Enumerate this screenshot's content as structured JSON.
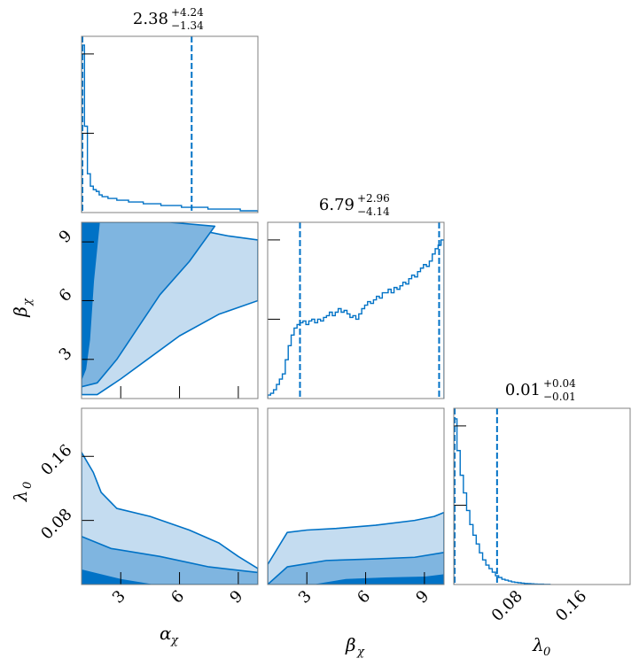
{
  "chart_data": {
    "type": "corner",
    "colors": {
      "line": "#0072c6",
      "fill_inner": "#0072c6",
      "fill_mid": "#7fb5e0",
      "fill_outer": "#c4dcf0",
      "frame": "#808080"
    },
    "parameters": [
      {
        "symbol": "α",
        "subscript": "χ",
        "range": [
          1,
          10
        ],
        "ticks": [
          3,
          6,
          9
        ],
        "tick_labels": [
          "3",
          "6",
          "9"
        ],
        "title": {
          "median": "2.38",
          "plus": "+4.24",
          "minus": "−1.34"
        },
        "quantiles": [
          1.04,
          6.62
        ],
        "histogram": {
          "bin_width": 0.15,
          "heights": [
            0.95,
            0.49,
            0.22,
            0.15,
            0.13,
            0.12,
            0.1,
            0.09,
            0.09,
            0.08,
            0.08,
            0.08,
            0.07,
            0.07,
            0.07,
            0.07,
            0.06,
            0.06,
            0.06,
            0.06,
            0.06,
            0.05,
            0.05,
            0.05,
            0.05,
            0.05,
            0.05,
            0.04,
            0.04,
            0.04,
            0.04,
            0.04,
            0.04,
            0.04,
            0.03,
            0.03,
            0.03,
            0.03,
            0.03,
            0.03,
            0.03,
            0.03,
            0.03,
            0.02,
            0.02,
            0.02,
            0.02,
            0.02,
            0.02,
            0.02,
            0.02,
            0.02,
            0.02,
            0.02,
            0.01,
            0.01,
            0.01,
            0.01,
            0.01,
            0.01
          ]
        }
      },
      {
        "symbol": "β",
        "subscript": "χ",
        "range": [
          1,
          10
        ],
        "ticks": [
          3,
          6,
          9
        ],
        "tick_labels": [
          "3",
          "6",
          "9"
        ],
        "title": {
          "median": "6.79",
          "plus": "+2.96",
          "minus": "−4.14"
        },
        "quantiles": [
          2.65,
          9.75
        ],
        "histogram": {
          "bin_width": 0.15,
          "heights": [
            0.02,
            0.03,
            0.05,
            0.08,
            0.11,
            0.14,
            0.22,
            0.3,
            0.36,
            0.4,
            0.42,
            0.43,
            0.44,
            0.42,
            0.44,
            0.45,
            0.43,
            0.45,
            0.44,
            0.46,
            0.47,
            0.49,
            0.47,
            0.49,
            0.51,
            0.49,
            0.5,
            0.48,
            0.46,
            0.47,
            0.45,
            0.48,
            0.51,
            0.53,
            0.55,
            0.54,
            0.56,
            0.58,
            0.57,
            0.6,
            0.6,
            0.62,
            0.6,
            0.63,
            0.62,
            0.64,
            0.66,
            0.65,
            0.68,
            0.7,
            0.69,
            0.72,
            0.74,
            0.76,
            0.75,
            0.78,
            0.82,
            0.85,
            0.87,
            0.9
          ]
        }
      },
      {
        "symbol": "λ",
        "subscript": "0",
        "range": [
          0,
          0.22
        ],
        "ticks": [
          0.08,
          0.16
        ],
        "tick_labels": [
          "0.08",
          "0.16"
        ],
        "title": {
          "median": "0.01",
          "plus": "+0.04",
          "minus": "−0.01"
        },
        "quantiles": [
          0.0,
          0.054
        ],
        "histogram": {
          "bin_width": 0.004,
          "heights": [
            0.94,
            0.76,
            0.62,
            0.52,
            0.42,
            0.34,
            0.28,
            0.23,
            0.18,
            0.14,
            0.11,
            0.09,
            0.07,
            0.05,
            0.04,
            0.03,
            0.025,
            0.02,
            0.015,
            0.012,
            0.01,
            0.008,
            0.006,
            0.005,
            0.004,
            0.003,
            0.002,
            0.002,
            0.001,
            0.001
          ]
        }
      }
    ],
    "hist_yticks": [
      0.9,
      0.45
    ],
    "contours": [
      {
        "row": 1,
        "col": 0,
        "levels": [
          [
            [
              1.0,
              1.2
            ],
            [
              1.0,
              10.0
            ],
            [
              3.5,
              10.0
            ],
            [
              6.0,
              9.8
            ],
            [
              8.5,
              9.3
            ],
            [
              10.0,
              9.1
            ],
            [
              10.0,
              6.0
            ],
            [
              8.0,
              5.3
            ],
            [
              6.0,
              4.2
            ],
            [
              4.5,
              3.1
            ],
            [
              3.0,
              2.0
            ],
            [
              1.8,
              1.2
            ]
          ],
          [
            [
              1.0,
              1.6
            ],
            [
              1.0,
              10.0
            ],
            [
              3.0,
              10.0
            ],
            [
              5.5,
              10.0
            ],
            [
              7.8,
              9.8
            ],
            [
              6.5,
              8.0
            ],
            [
              5.0,
              6.3
            ],
            [
              3.8,
              4.5
            ],
            [
              2.8,
              3.0
            ],
            [
              1.8,
              1.8
            ]
          ],
          [
            [
              1.0,
              2.0
            ],
            [
              1.0,
              10.0
            ],
            [
              1.9,
              10.0
            ],
            [
              1.6,
              7.0
            ],
            [
              1.4,
              4.0
            ],
            [
              1.2,
              2.5
            ]
          ]
        ]
      },
      {
        "row": 2,
        "col": 0,
        "levels": [
          [
            [
              1.0,
              0.0
            ],
            [
              1.0,
              0.165
            ],
            [
              1.6,
              0.14
            ],
            [
              2.0,
              0.115
            ],
            [
              2.8,
              0.095
            ],
            [
              4.5,
              0.085
            ],
            [
              6.5,
              0.068
            ],
            [
              8.0,
              0.052
            ],
            [
              9.0,
              0.035
            ],
            [
              10.0,
              0.02
            ],
            [
              10.0,
              0.0
            ]
          ],
          [
            [
              1.0,
              0.0
            ],
            [
              1.0,
              0.06
            ],
            [
              2.5,
              0.045
            ],
            [
              5.0,
              0.035
            ],
            [
              7.5,
              0.022
            ],
            [
              10.0,
              0.015
            ],
            [
              10.0,
              0.0
            ]
          ],
          [
            [
              1.0,
              0.0
            ],
            [
              1.0,
              0.018
            ],
            [
              3.0,
              0.006
            ],
            [
              4.5,
              0.0
            ]
          ]
        ]
      },
      {
        "row": 2,
        "col": 1,
        "levels": [
          [
            [
              1.0,
              0.0
            ],
            [
              1.0,
              0.025
            ],
            [
              2.0,
              0.065
            ],
            [
              3.0,
              0.068
            ],
            [
              4.5,
              0.07
            ],
            [
              6.5,
              0.074
            ],
            [
              8.5,
              0.08
            ],
            [
              9.5,
              0.085
            ],
            [
              10.0,
              0.09
            ],
            [
              10.0,
              0.0
            ]
          ],
          [
            [
              1.0,
              0.0
            ],
            [
              2.0,
              0.022
            ],
            [
              4.0,
              0.03
            ],
            [
              6.5,
              0.032
            ],
            [
              8.5,
              0.034
            ],
            [
              10.0,
              0.04
            ],
            [
              10.0,
              0.0
            ]
          ],
          [
            [
              3.5,
              0.0
            ],
            [
              5.0,
              0.006
            ],
            [
              7.0,
              0.008
            ],
            [
              9.0,
              0.009
            ],
            [
              10.0,
              0.012
            ],
            [
              10.0,
              0.0
            ]
          ]
        ]
      }
    ]
  }
}
